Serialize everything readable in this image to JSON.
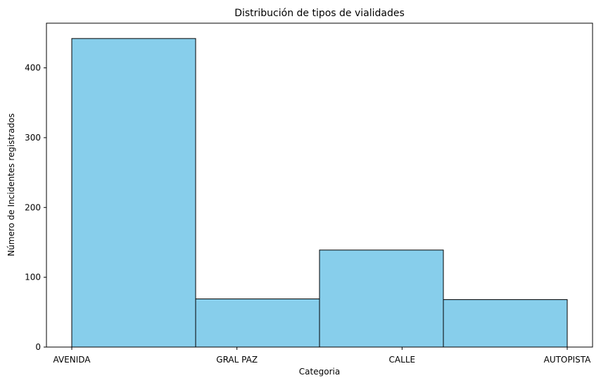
{
  "chart_data": {
    "type": "bar",
    "title": "Distribución de tipos de vialidades",
    "xlabel": "Categoria",
    "ylabel": "Número de Incidentes registrados",
    "categories": [
      "AVENIDA",
      "GRAL PAZ",
      "CALLE",
      "AUTOPISTA"
    ],
    "values": [
      442,
      69,
      139,
      68
    ],
    "ylim": [
      0,
      464
    ],
    "yticks": [
      0,
      100,
      200,
      300,
      400
    ],
    "bar_color": "#87ceeb",
    "edge_color": "#000000",
    "grid": false,
    "legend": "none"
  }
}
